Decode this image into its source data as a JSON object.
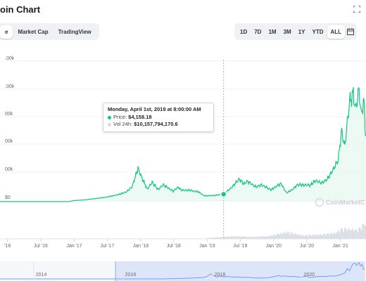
{
  "header": {
    "title": "oin Chart",
    "expand_icon": "expand-icon"
  },
  "tabs_left": [
    {
      "label": "e",
      "active": true
    },
    {
      "label": "Market Cap",
      "active": false
    },
    {
      "label": "TradingView",
      "active": false
    }
  ],
  "tabs_right": [
    {
      "label": "1D",
      "active": false
    },
    {
      "label": "7D",
      "active": false
    },
    {
      "label": "1M",
      "active": false
    },
    {
      "label": "3M",
      "active": false
    },
    {
      "label": "1Y",
      "active": false
    },
    {
      "label": "YTD",
      "active": false
    },
    {
      "label": "ALL",
      "active": true
    }
  ],
  "calendar_icon": "calendar-icon",
  "tooltip": {
    "date": "Monday, April 1st, 2019 at 8:00:00 AM",
    "price_label": "Price:",
    "price_value": "$4,158.18",
    "vol_label": "Vol 24h:",
    "vol_value": "$10,157,794,170.6"
  },
  "watermark": "CoinMarketC",
  "colors": {
    "line": "#16c784",
    "area_fill": "#e6f7ee",
    "grid": "#eef0f3",
    "volume": "#d7dbe2",
    "navigator_fill": "#dde6f9",
    "navigator_line": "#7a9cf0",
    "crosshair": "#9aa3b0"
  },
  "chart_data": {
    "type": "line",
    "y_tick_labels": [
      ".00k",
      ".00k",
      "00k",
      "00k",
      "00k",
      "$0"
    ],
    "x_tick_labels": [
      "'16",
      "Jul '16",
      "Jan '17",
      "Jul '17",
      "Jan '18",
      "Jul '18",
      "Jan '19",
      "Jul '19",
      "Jan '20",
      "Jul '20",
      "Jan '21",
      "Ju"
    ],
    "series": [
      {
        "values": [
          [
            "2015-11-01",
            0
          ],
          [
            "2016-03-01",
            0
          ],
          [
            "2016-07-01",
            0
          ],
          [
            "2016-12-01",
            0
          ],
          [
            "2017-01-01",
            600
          ],
          [
            "2017-03-01",
            1000
          ],
          [
            "2017-05-01",
            1800
          ],
          [
            "2017-07-01",
            2600
          ],
          [
            "2017-09-01",
            4000
          ],
          [
            "2017-10-15",
            5500
          ],
          [
            "2017-11-15",
            8500
          ],
          [
            "2017-12-17",
            19000
          ],
          [
            "2018-01-05",
            14000
          ],
          [
            "2018-02-06",
            7000
          ],
          [
            "2018-03-05",
            11000
          ],
          [
            "2018-04-06",
            6800
          ],
          [
            "2018-05-05",
            9500
          ],
          [
            "2018-06-28",
            5900
          ],
          [
            "2018-07-25",
            8200
          ],
          [
            "2018-08-15",
            6300
          ],
          [
            "2018-09-20",
            6500
          ],
          [
            "2018-11-15",
            5500
          ],
          [
            "2018-12-15",
            3300
          ],
          [
            "2019-02-01",
            3400
          ],
          [
            "2019-04-01",
            4158
          ],
          [
            "2019-05-15",
            8000
          ],
          [
            "2019-06-26",
            12800
          ],
          [
            "2019-07-20",
            10000
          ],
          [
            "2019-08-10",
            11500
          ],
          [
            "2019-09-25",
            8300
          ],
          [
            "2019-10-26",
            9500
          ],
          [
            "2019-12-17",
            6700
          ],
          [
            "2020-02-10",
            10200
          ],
          [
            "2020-03-12",
            4900
          ],
          [
            "2020-04-15",
            7000
          ],
          [
            "2020-05-10",
            9500
          ],
          [
            "2020-07-20",
            9300
          ],
          [
            "2020-08-15",
            11800
          ],
          [
            "2020-09-20",
            10500
          ],
          [
            "2020-10-20",
            12500
          ],
          [
            "2020-11-25",
            18500
          ],
          [
            "2020-12-20",
            23500
          ],
          [
            "2021-01-08",
            40000
          ],
          [
            "2021-01-25",
            31000
          ],
          [
            "2021-02-20",
            56000
          ],
          [
            "2021-03-13",
            61000
          ],
          [
            "2021-03-25",
            52000
          ],
          [
            "2021-04-14",
            63500
          ],
          [
            "2021-04-25",
            49000
          ],
          [
            "2021-05-10",
            57000
          ],
          [
            "2021-05-19",
            38000
          ],
          [
            "2021-06-01",
            36000
          ]
        ]
      }
    ],
    "volume": [
      [
        "2019-01-01",
        5
      ],
      [
        "2019-06-01",
        15
      ],
      [
        "2019-09-01",
        12
      ],
      [
        "2019-12-01",
        16
      ],
      [
        "2020-03-12",
        40
      ],
      [
        "2020-06-01",
        20
      ],
      [
        "2020-09-01",
        24
      ],
      [
        "2020-12-01",
        35
      ],
      [
        "2021-01-10",
        60
      ],
      [
        "2021-02-20",
        55
      ],
      [
        "2021-04-01",
        50
      ],
      [
        "2021-05-19",
        95
      ]
    ],
    "crosshair_date": "2019-04-01",
    "navigator": {
      "tick_labels": [
        "2014",
        "2016",
        "2018",
        "2020"
      ],
      "selected_from": "2015-11-01",
      "selected_to": "2021-06-01"
    }
  }
}
